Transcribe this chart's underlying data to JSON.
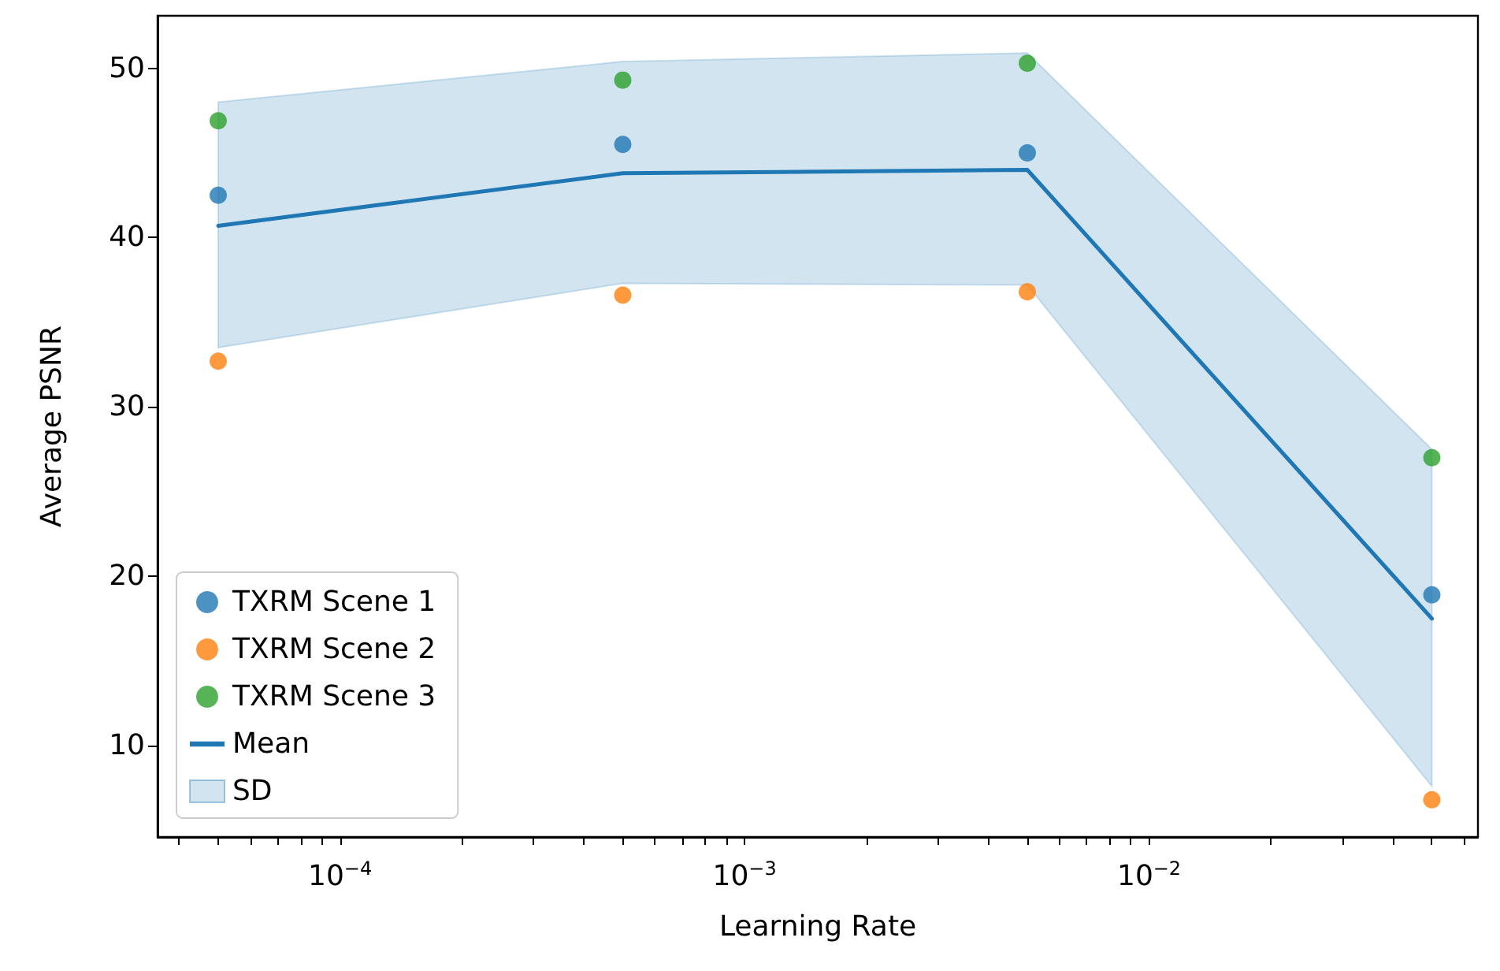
{
  "chart_data": {
    "type": "scatter",
    "xlabel": "Learning Rate",
    "ylabel": "Average PSNR",
    "log": "x",
    "grid": false,
    "legend": "bottom left",
    "marker": "circle",
    "x": [
      5e-05,
      0.0005,
      0.005,
      0.05
    ],
    "xlim": [
      3.54e-05,
      0.065
    ],
    "xticks": [
      {
        "value": 4e-05,
        "label": null
      },
      {
        "value": 5e-05,
        "label": null
      },
      {
        "value": 6e-05,
        "label": null
      },
      {
        "value": 7e-05,
        "label": null
      },
      {
        "value": 8e-05,
        "label": null
      },
      {
        "value": 9e-05,
        "label": null
      },
      {
        "value": 0.0001,
        "label": "10$^{−4}$"
      },
      {
        "value": 0.0002,
        "label": null
      },
      {
        "value": 0.0003,
        "label": null
      },
      {
        "value": 0.0004,
        "label": null
      },
      {
        "value": 0.0005,
        "label": null
      },
      {
        "value": 0.0006,
        "label": null
      },
      {
        "value": 0.0007,
        "label": null
      },
      {
        "value": 0.0008,
        "label": null
      },
      {
        "value": 0.0009,
        "label": null
      },
      {
        "value": 0.001,
        "label": "10$^{−3}$"
      },
      {
        "value": 0.002,
        "label": null
      },
      {
        "value": 0.003,
        "label": null
      },
      {
        "value": 0.004,
        "label": null
      },
      {
        "value": 0.005,
        "label": null
      },
      {
        "value": 0.006,
        "label": null
      },
      {
        "value": 0.007,
        "label": null
      },
      {
        "value": 0.008,
        "label": null
      },
      {
        "value": 0.009,
        "label": null
      },
      {
        "value": 0.01,
        "label": "10$^{−2}$"
      },
      {
        "value": 0.02,
        "label": null
      },
      {
        "value": 0.03,
        "label": null
      },
      {
        "value": 0.04,
        "label": null
      },
      {
        "value": 0.05,
        "label": null
      },
      {
        "value": 0.06,
        "label": null
      }
    ],
    "ylim": [
      4.6,
      53.1
    ],
    "yticks": [
      10,
      20,
      30,
      40,
      50
    ],
    "series": [
      {
        "name": "TXRM Scene 1",
        "color": "#1f77b4",
        "values": [
          42.5,
          45.5,
          45.0,
          18.9
        ]
      },
      {
        "name": "TXRM Scene 2",
        "color": "#ff7f0e",
        "values": [
          32.7,
          36.6,
          36.8,
          6.8
        ]
      },
      {
        "name": "TXRM Scene 3",
        "color": "#2ca02c",
        "values": [
          46.9,
          49.3,
          50.3,
          27.0
        ]
      },
      {
        "name": "Mean",
        "type": "line",
        "color": "#1f77b4",
        "line_style": "solid",
        "marker": "none",
        "values": [
          40.7,
          43.8,
          44.0,
          17.5
        ]
      },
      {
        "name": "SD",
        "type": "area",
        "color": "#1f77b4",
        "values": [
          null,
          null,
          null,
          null
        ],
        "lower": [
          33.5,
          37.3,
          37.2,
          7.6
        ],
        "upper": [
          48.0,
          50.4,
          50.9,
          27.5
        ]
      }
    ]
  }
}
